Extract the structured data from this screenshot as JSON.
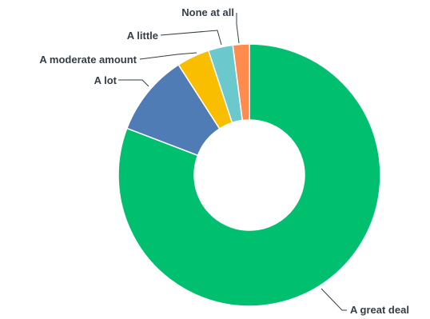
{
  "chart_data": {
    "type": "pie",
    "donut": true,
    "labels": [
      "A great deal",
      "A lot",
      "A moderate amount",
      "A little",
      "None at all"
    ],
    "values": [
      80,
      10,
      4,
      3,
      2
    ],
    "colors": [
      "#00bf6f",
      "#507cb6",
      "#f9be00",
      "#6bc8cd",
      "#ff8b4f"
    ],
    "legend": "none"
  }
}
